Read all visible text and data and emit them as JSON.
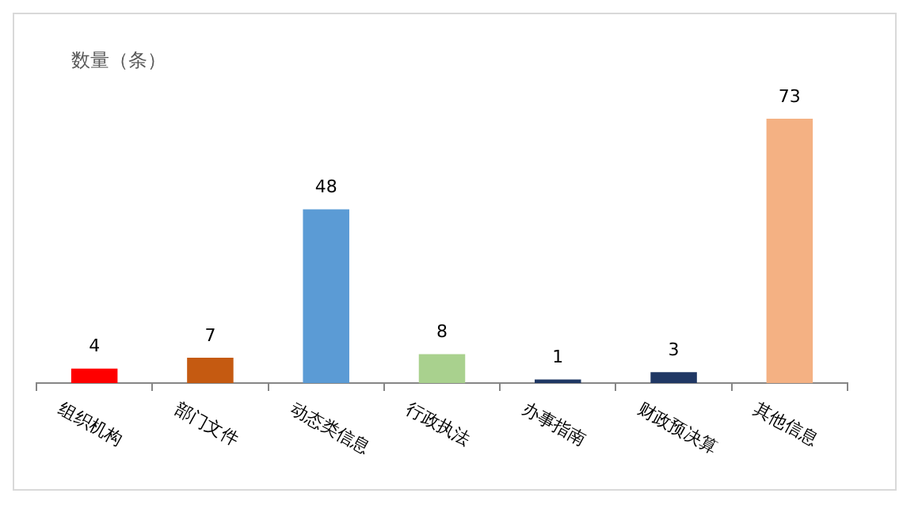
{
  "chart_data": {
    "type": "bar",
    "ylabel": "数量（条）",
    "categories": [
      "组织机构",
      "部门文件",
      "动态类信息",
      "行政执法",
      "办事指南",
      "财政预决算",
      "其他信息"
    ],
    "values": [
      4,
      7,
      48,
      8,
      1,
      3,
      73
    ],
    "colors": [
      "#ff0000",
      "#c55a11",
      "#5b9bd5",
      "#a9d18e",
      "#1f3864",
      "#203864",
      "#f4b183"
    ],
    "data_labels": true,
    "grid": false,
    "legend": false
  }
}
